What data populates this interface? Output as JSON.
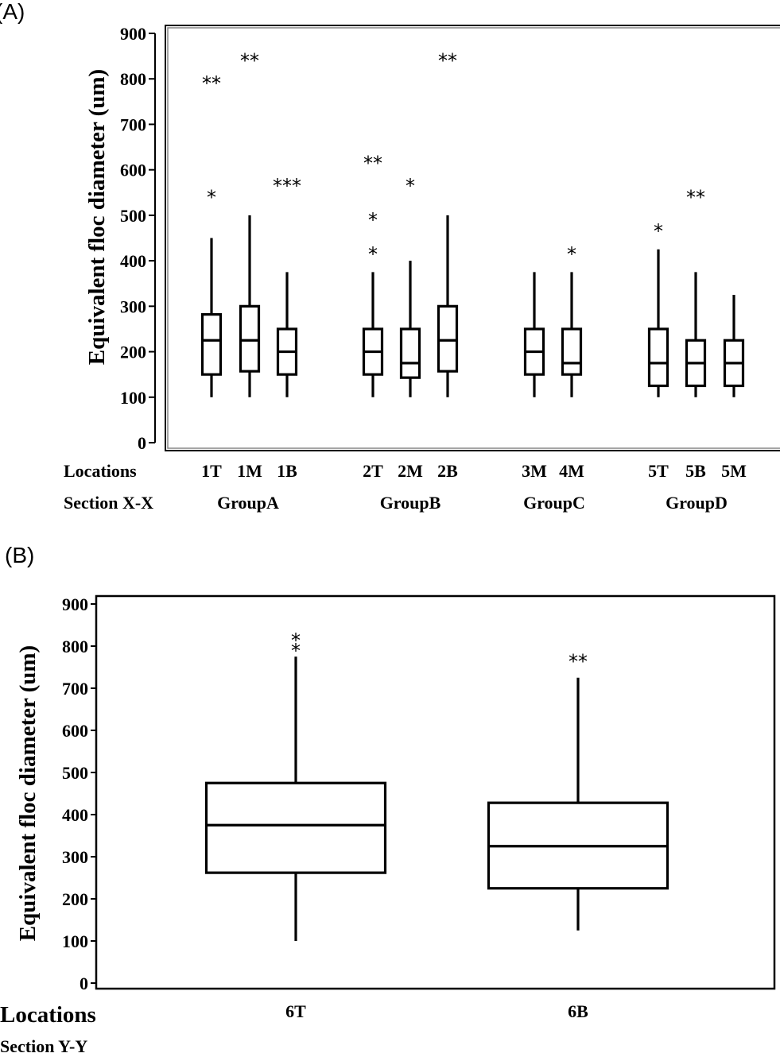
{
  "chart_data": [
    {
      "panel_label": "(A)",
      "type": "box",
      "ylabel": "Equivalent floc diameter (um)",
      "ylim": [
        0,
        900
      ],
      "yticks": [
        0,
        100,
        200,
        300,
        400,
        500,
        600,
        700,
        800,
        900
      ],
      "row_labels": {
        "locations": "Locations",
        "section": "Section X-X"
      },
      "groups": [
        "GroupA",
        "GroupB",
        "GroupC",
        "GroupD"
      ],
      "boxes": [
        {
          "label": "1T",
          "group": "GroupA",
          "min": 100,
          "q1": 150,
          "median": 225,
          "q3": 282,
          "max": 450,
          "outliers": [
            {
              "y": 800,
              "mark": "**"
            },
            {
              "y": 550,
              "mark": "*"
            }
          ]
        },
        {
          "label": "1M",
          "group": "GroupA",
          "min": 100,
          "q1": 157,
          "median": 225,
          "q3": 300,
          "max": 500,
          "outliers": [
            {
              "y": 850,
              "mark": "**"
            }
          ]
        },
        {
          "label": "1B",
          "group": "GroupA",
          "min": 100,
          "q1": 150,
          "median": 200,
          "q3": 250,
          "max": 375,
          "outliers": [
            {
              "y": 575,
              "mark": "***"
            }
          ]
        },
        {
          "label": "2T",
          "group": "GroupB",
          "min": 100,
          "q1": 150,
          "median": 200,
          "q3": 250,
          "max": 375,
          "outliers": [
            {
              "y": 625,
              "mark": "**"
            },
            {
              "y": 500,
              "mark": "*"
            },
            {
              "y": 425,
              "mark": "*"
            }
          ]
        },
        {
          "label": "2M",
          "group": "GroupB",
          "min": 100,
          "q1": 143,
          "median": 175,
          "q3": 250,
          "max": 400,
          "outliers": [
            {
              "y": 575,
              "mark": "*"
            }
          ]
        },
        {
          "label": "2B",
          "group": "GroupB",
          "min": 100,
          "q1": 157,
          "median": 225,
          "q3": 300,
          "max": 500,
          "outliers": [
            {
              "y": 850,
              "mark": "**"
            }
          ]
        },
        {
          "label": "3M",
          "group": "GroupC",
          "min": 100,
          "q1": 150,
          "median": 200,
          "q3": 250,
          "max": 375,
          "outliers": []
        },
        {
          "label": "4M",
          "group": "GroupC",
          "min": 100,
          "q1": 150,
          "median": 175,
          "q3": 250,
          "max": 375,
          "outliers": [
            {
              "y": 425,
              "mark": "*"
            }
          ]
        },
        {
          "label": "5T",
          "group": "GroupD",
          "min": 100,
          "q1": 125,
          "median": 175,
          "q3": 250,
          "max": 425,
          "outliers": [
            {
              "y": 475,
              "mark": "*"
            }
          ]
        },
        {
          "label": "5B",
          "group": "GroupD",
          "min": 100,
          "q1": 125,
          "median": 175,
          "q3": 225,
          "max": 375,
          "outliers": [
            {
              "y": 550,
              "mark": "**"
            }
          ]
        },
        {
          "label": "5M",
          "group": "GroupD",
          "min": 100,
          "q1": 125,
          "median": 175,
          "q3": 225,
          "max": 325,
          "outliers": []
        }
      ]
    },
    {
      "panel_label": "(B)",
      "type": "box",
      "ylabel": "Equivalent floc diameter (um)",
      "ylim": [
        0,
        900
      ],
      "yticks": [
        0,
        100,
        200,
        300,
        400,
        500,
        600,
        700,
        800,
        900
      ],
      "row_labels": {
        "locations": "Locations",
        "section": "Section Y-Y"
      },
      "boxes": [
        {
          "label": "6T",
          "min": 100,
          "q1": 262,
          "median": 375,
          "q3": 475,
          "max": 775,
          "outliers": [
            {
              "y": 825,
              "mark": "*"
            },
            {
              "y": 800,
              "mark": "*"
            }
          ]
        },
        {
          "label": "6B",
          "min": 125,
          "q1": 225,
          "median": 325,
          "q3": 428,
          "max": 725,
          "outliers": [
            {
              "y": 775,
              "mark": "**"
            }
          ]
        }
      ]
    }
  ]
}
